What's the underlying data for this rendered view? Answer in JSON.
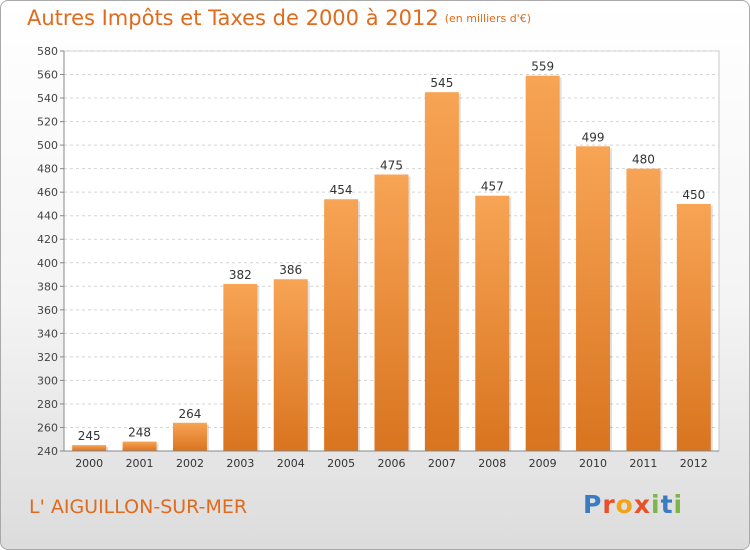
{
  "title": "Autres Impôts et Taxes de 2000 à 2012",
  "unit": "(en milliers d'€)",
  "place": "L' AIGUILLON-SUR-MER",
  "logo": {
    "letters": [
      "P",
      "r",
      "o",
      "x",
      "i",
      "t",
      "i"
    ],
    "colors": [
      "#3a7cc4",
      "#e8502a",
      "#f2a31b",
      "#e8502a",
      "#7ab648",
      "#3a7cc4",
      "#7ab648"
    ]
  },
  "colors": {
    "bar_light": "#f7a455",
    "bar_dark": "#d9741f",
    "accent": "#e06b1c"
  },
  "chart_data": {
    "type": "bar",
    "categories": [
      "2000",
      "2001",
      "2002",
      "2003",
      "2004",
      "2005",
      "2006",
      "2007",
      "2008",
      "2009",
      "2010",
      "2011",
      "2012"
    ],
    "values": [
      245,
      248,
      264,
      382,
      386,
      454,
      475,
      545,
      457,
      559,
      499,
      480,
      450
    ],
    "ylim": [
      240,
      580
    ],
    "yticks": [
      240,
      260,
      280,
      300,
      320,
      340,
      360,
      380,
      400,
      420,
      440,
      460,
      480,
      500,
      520,
      540,
      560,
      580
    ],
    "grid": true,
    "data_labels": true
  }
}
